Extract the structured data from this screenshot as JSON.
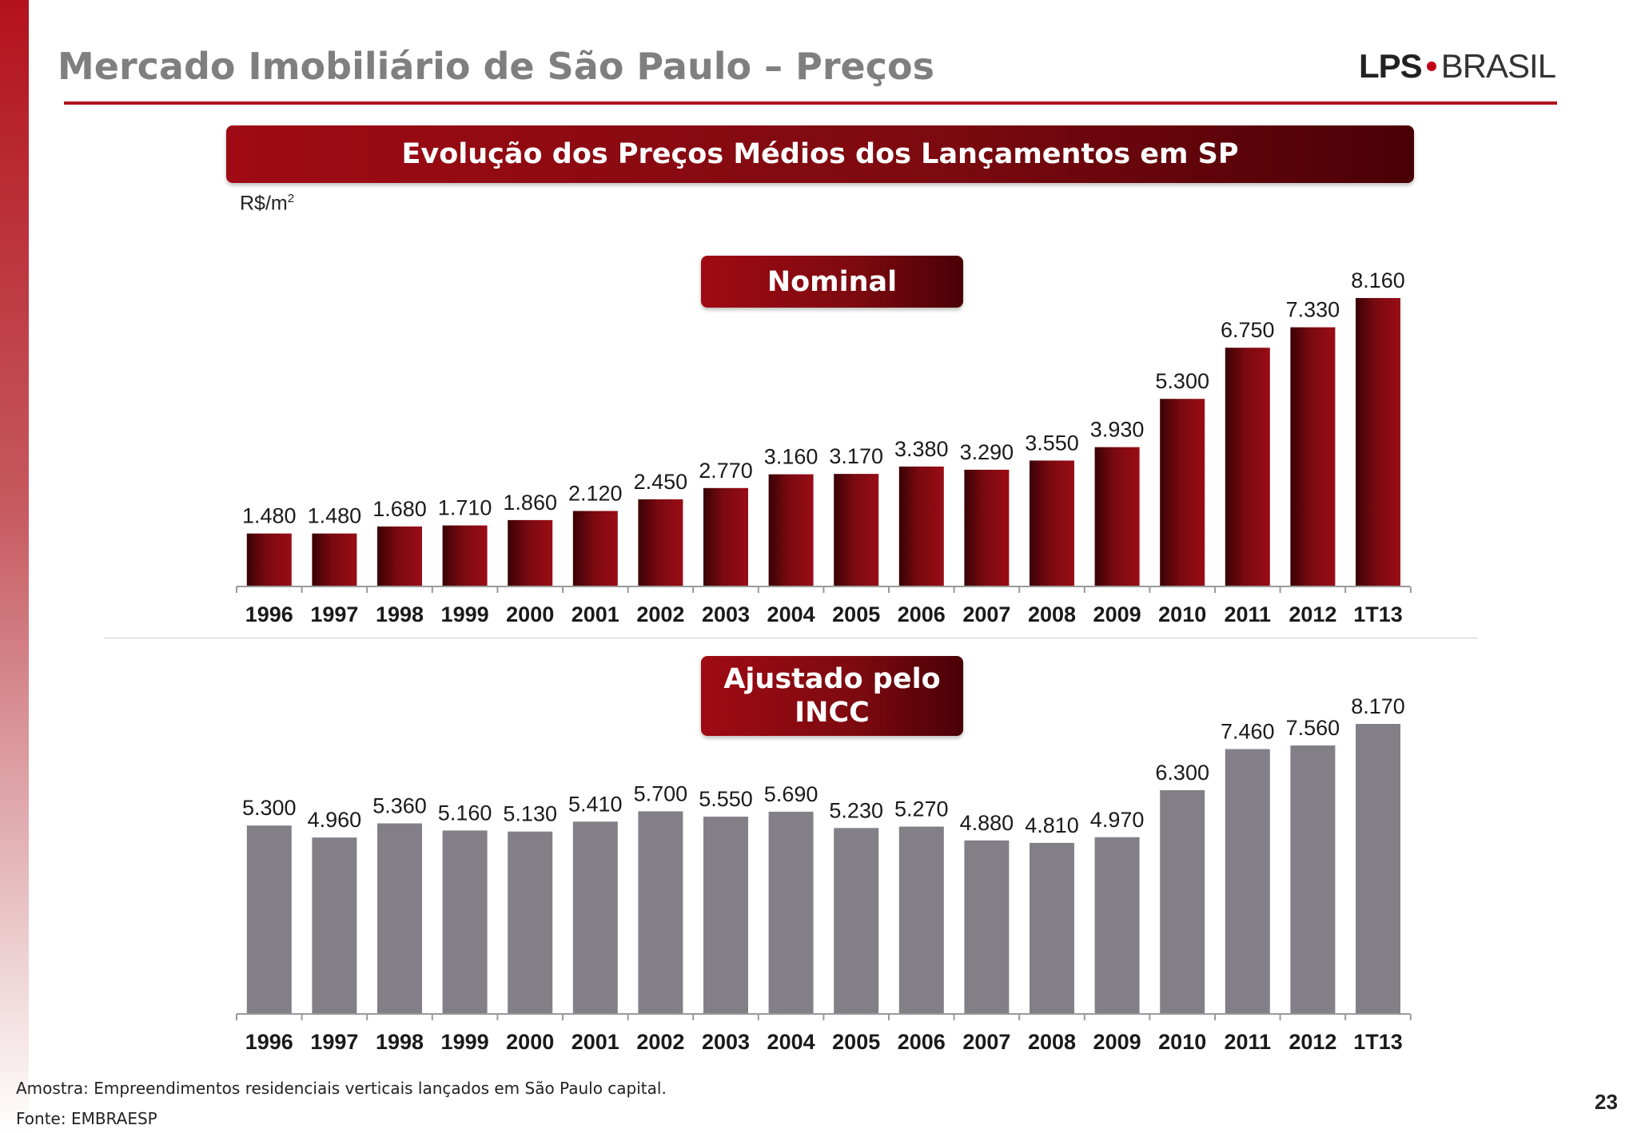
{
  "header": {
    "title": "Mercado Imobiliário de São Paulo – Preços",
    "logo_left": "LPS",
    "logo_right": "BRASIL",
    "logo_dot_color": "#c00018"
  },
  "banner": {
    "title": "Evolução dos Preços Médios dos Lançamentos em SP"
  },
  "units": {
    "label": "R$/m",
    "superscript": "2"
  },
  "chart_data": [
    {
      "type": "bar",
      "title": "Nominal",
      "categories": [
        "1996",
        "1997",
        "1998",
        "1999",
        "2000",
        "2001",
        "2002",
        "2003",
        "2004",
        "2005",
        "2006",
        "2007",
        "2008",
        "2009",
        "2010",
        "2011",
        "2012",
        "1T13"
      ],
      "values": [
        1480,
        1480,
        1680,
        1710,
        1860,
        2120,
        2450,
        2770,
        3160,
        3170,
        3380,
        3290,
        3550,
        3930,
        5300,
        6750,
        7330,
        8160
      ],
      "labels": [
        "1.480",
        "1.480",
        "1.680",
        "1.710",
        "1.860",
        "2.120",
        "2.450",
        "2.770",
        "3.160",
        "3.170",
        "3.380",
        "3.290",
        "3.550",
        "3.930",
        "5.300",
        "6.750",
        "7.330",
        "8.160"
      ],
      "ylim": [
        0,
        10000
      ],
      "color": "#8a0a12",
      "grid": false
    },
    {
      "type": "bar",
      "title_lines": [
        "Ajustado pelo",
        "INCC"
      ],
      "categories": [
        "1996",
        "1997",
        "1998",
        "1999",
        "2000",
        "2001",
        "2002",
        "2003",
        "2004",
        "2005",
        "2006",
        "2007",
        "2008",
        "2009",
        "2010",
        "2011",
        "2012",
        "1T13"
      ],
      "values": [
        5300,
        4960,
        5360,
        5160,
        5130,
        5410,
        5700,
        5550,
        5690,
        5230,
        5270,
        4880,
        4810,
        4970,
        6300,
        7460,
        7560,
        8170
      ],
      "labels": [
        "5.300",
        "4.960",
        "5.360",
        "5.160",
        "5.130",
        "5.410",
        "5.700",
        "5.550",
        "5.690",
        "5.230",
        "5.270",
        "4.880",
        "4.810",
        "4.970",
        "6.300",
        "7.460",
        "7.560",
        "8.170"
      ],
      "ylim": [
        0,
        10000
      ],
      "color": "#828086",
      "grid": false
    }
  ],
  "footer": {
    "sample": "Amostra: Empreendimentos residenciais verticais lançados em São Paulo capital.",
    "source": "Fonte: EMBRAESP",
    "page_number": "23"
  }
}
